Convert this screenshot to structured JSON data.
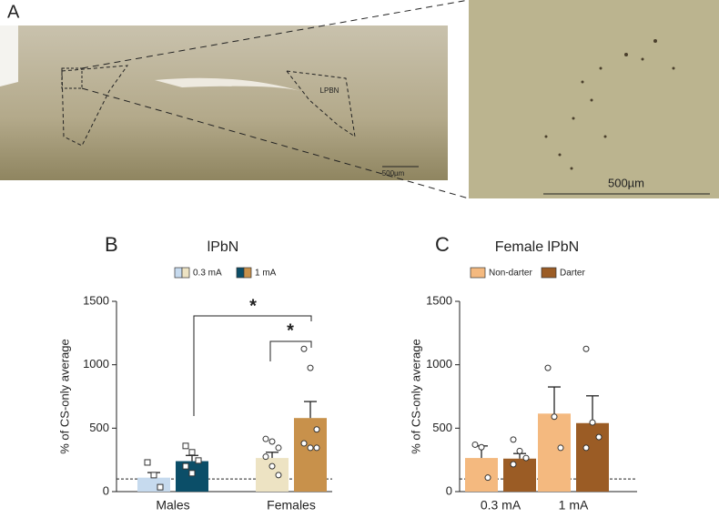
{
  "panels": {
    "a": "A",
    "region_label": "LPBN",
    "scale_left": "500µm",
    "scale_right": "500µm"
  },
  "chart_data": [
    {
      "type": "bar",
      "panel": "B",
      "title": "lPbN",
      "y_label": "% of CS-only average",
      "categories": [
        "Males",
        "Females"
      ],
      "markers": [
        "square",
        "circle"
      ],
      "ylim": [
        0,
        1500
      ],
      "yticks": [
        0,
        500,
        1000,
        1500
      ],
      "baseline": 100,
      "series": [
        {
          "name": "0.3 mA",
          "colors": [
            "#c6daee",
            "#ede3c3"
          ],
          "values": [
            110,
            265
          ],
          "errors": [
            40,
            45
          ],
          "points": [
            [
              230,
              130,
              35
            ],
            [
              415,
              395,
              345,
              275,
              200,
              130
            ]
          ]
        },
        {
          "name": "1 mA",
          "colors": [
            "#0b4e68",
            "#c8914b"
          ],
          "values": [
            240,
            580
          ],
          "errors": [
            45,
            130
          ],
          "points": [
            [
              360,
              310,
              245,
              200,
              145
            ],
            [
              1125,
              975,
              490,
              380,
              345,
              345
            ]
          ]
        }
      ],
      "annotations": [
        "*",
        "*"
      ]
    },
    {
      "type": "bar",
      "panel": "C",
      "title": "Female lPbN",
      "y_label": "% of CS-only average",
      "categories": [
        "0.3 mA",
        "1 mA"
      ],
      "markers": [
        "circle",
        "circle"
      ],
      "ylim": [
        0,
        1500
      ],
      "yticks": [
        0,
        500,
        1000,
        1500
      ],
      "baseline": 100,
      "series": [
        {
          "name": "Non-darter",
          "color": "#f4b97f",
          "values": [
            265,
            615
          ],
          "errors": [
            95,
            210
          ],
          "points": [
            [
              370,
              350,
              110
            ],
            [
              975,
              590,
              345
            ]
          ]
        },
        {
          "name": "Darter",
          "color": "#9b5c25",
          "values": [
            260,
            540
          ],
          "errors": [
            40,
            215
          ],
          "points": [
            [
              410,
              320,
              265,
              215
            ],
            [
              1125,
              545,
              430,
              345
            ]
          ]
        }
      ]
    }
  ]
}
